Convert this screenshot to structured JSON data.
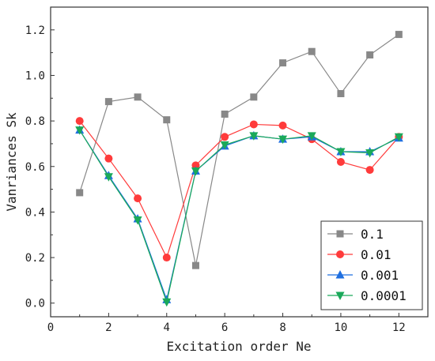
{
  "chart_data": {
    "type": "line",
    "xlabel": "Excitation order Ne",
    "ylabel": "Vanriances Sk",
    "xlim": [
      0,
      13
    ],
    "ylim": [
      -0.06,
      1.3
    ],
    "x_ticks": [
      0,
      2,
      4,
      6,
      8,
      10,
      12
    ],
    "y_ticks": [
      0.0,
      0.2,
      0.4,
      0.6,
      0.8,
      1.0,
      1.2
    ],
    "x_tick_labels": [
      "0",
      "2",
      "4",
      "6",
      "8",
      "10",
      "12"
    ],
    "y_tick_labels": [
      "0.0",
      "0.2",
      "0.4",
      "0.6",
      "0.8",
      "1.0",
      "1.2"
    ],
    "grid": false,
    "legend_position": "bottom-right",
    "x": [
      1,
      2,
      3,
      4,
      5,
      6,
      7,
      8,
      9,
      10,
      11,
      12
    ],
    "series": [
      {
        "name": "0.1",
        "color": "#888888",
        "marker": "square",
        "values": [
          0.485,
          0.885,
          0.905,
          0.805,
          0.165,
          0.83,
          0.905,
          1.055,
          1.105,
          0.92,
          1.09,
          1.18
        ]
      },
      {
        "name": "0.01",
        "color": "#ff3b3b",
        "marker": "circle",
        "values": [
          0.8,
          0.635,
          0.46,
          0.2,
          0.605,
          0.73,
          0.785,
          0.78,
          0.72,
          0.62,
          0.585,
          0.73
        ]
      },
      {
        "name": "0.001",
        "color": "#1f6fe0",
        "marker": "triangle-up",
        "values": [
          0.76,
          0.56,
          0.37,
          0.015,
          0.58,
          0.69,
          0.735,
          0.72,
          0.73,
          0.665,
          0.665,
          0.725
        ]
      },
      {
        "name": "0.0001",
        "color": "#1aa95a",
        "marker": "triangle-down",
        "values": [
          0.76,
          0.555,
          0.365,
          0.005,
          0.58,
          0.695,
          0.735,
          0.72,
          0.735,
          0.665,
          0.66,
          0.73
        ]
      }
    ]
  }
}
